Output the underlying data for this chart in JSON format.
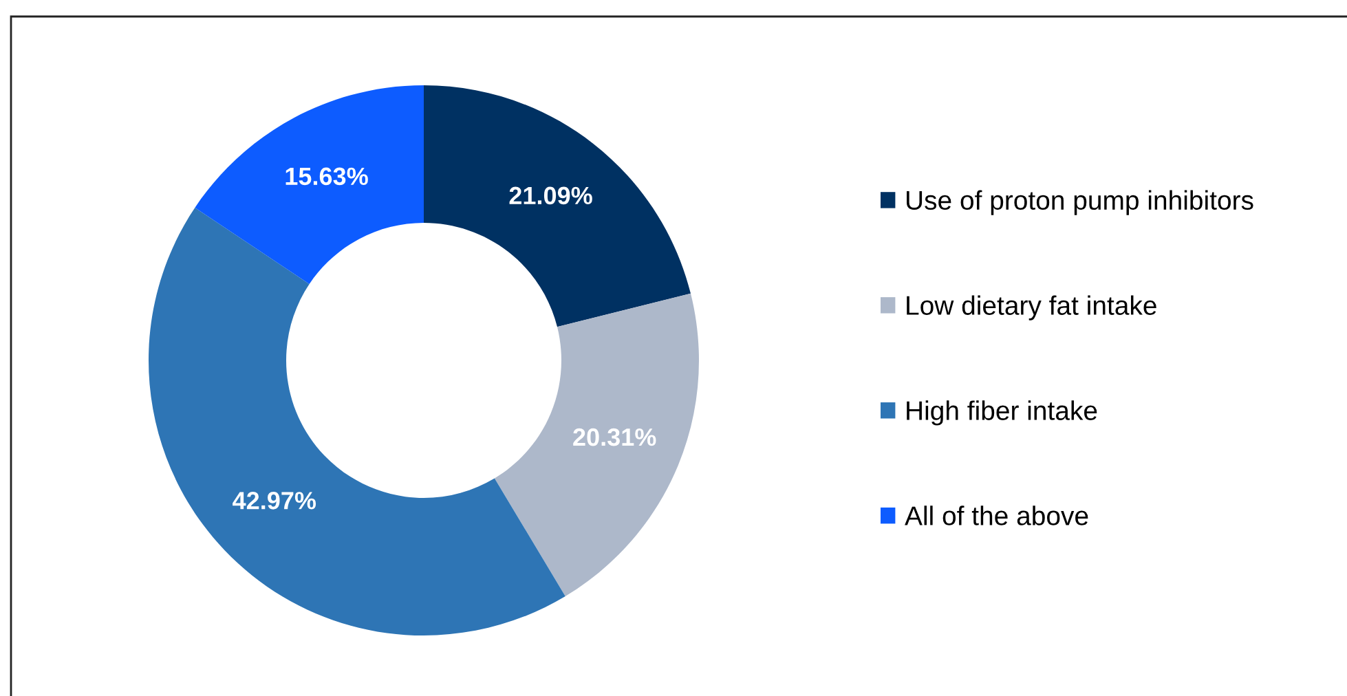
{
  "chart_data": {
    "type": "donut",
    "categories": [
      "Use of proton pump inhibitors",
      "Low dietary fat intake",
      "High fiber intake",
      "All of the above"
    ],
    "values": [
      21.09,
      20.31,
      42.97,
      15.63
    ],
    "colors": [
      "#003162",
      "#adb8ca",
      "#2e75b5",
      "#0d5cff"
    ],
    "value_labels": [
      "21.09%",
      "20.31%",
      "42.97%",
      "15.63%"
    ],
    "legend": "right"
  }
}
